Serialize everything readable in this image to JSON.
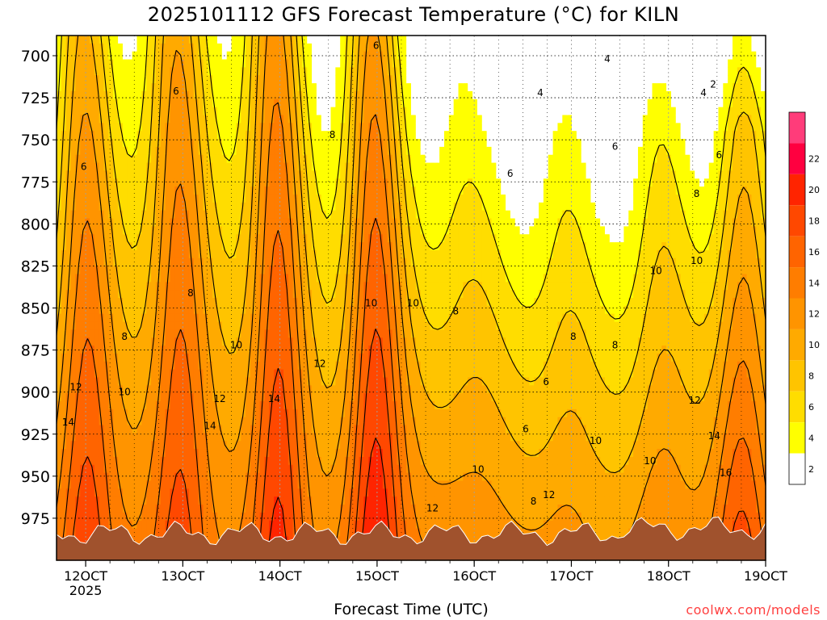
{
  "chart_data": {
    "type": "contour",
    "title": "2025101112 GFS Forecast Temperature (°C) for KILN",
    "xlabel": "Forecast Time (UTC)",
    "ylabel": "",
    "credit": "coolwx.com/models",
    "x_tick_labels": [
      "12OCT",
      "13OCT",
      "14OCT",
      "15OCT",
      "16OCT",
      "17OCT",
      "18OCT",
      "19OCT"
    ],
    "x_year_label": "2025",
    "y_tick_labels": [
      "700",
      "725",
      "750",
      "775",
      "800",
      "825",
      "850",
      "875",
      "900",
      "925",
      "950",
      "975"
    ],
    "y_levels_hPa": [
      700,
      725,
      750,
      775,
      800,
      825,
      850,
      875,
      900,
      925,
      950,
      975
    ],
    "x_day_range": [
      11.7,
      19.0
    ],
    "y_range_hPa": [
      688,
      1000
    ],
    "grid": true,
    "legend": "right",
    "colorbar_ticks": [
      "2",
      "4",
      "6",
      "8",
      "10",
      "12",
      "14",
      "16",
      "18",
      "20",
      "22"
    ],
    "colorbar_colors": [
      "#ffffff",
      "#ffff00",
      "#ffdd00",
      "#ffc400",
      "#ffaa00",
      "#ff9400",
      "#ff7d00",
      "#ff6400",
      "#ff4800",
      "#ff2400",
      "#ff0040",
      "#ff3c7a"
    ],
    "contour_labels": [
      {
        "t": "6",
        "day": 11.98,
        "p": 766
      },
      {
        "t": "6",
        "day": 12.93,
        "p": 721
      },
      {
        "t": "6",
        "day": 14.99,
        "p": 694
      },
      {
        "t": "8",
        "day": 14.54,
        "p": 747
      },
      {
        "t": "8",
        "day": 13.08,
        "p": 841
      },
      {
        "t": "8",
        "day": 12.4,
        "p": 867
      },
      {
        "t": "10",
        "day": 13.55,
        "p": 872
      },
      {
        "t": "10",
        "day": 14.94,
        "p": 847
      },
      {
        "t": "10",
        "day": 15.37,
        "p": 847
      },
      {
        "t": "8",
        "day": 15.81,
        "p": 852
      },
      {
        "t": "12",
        "day": 11.9,
        "p": 897
      },
      {
        "t": "10",
        "day": 12.4,
        "p": 900
      },
      {
        "t": "12",
        "day": 13.38,
        "p": 904
      },
      {
        "t": "12",
        "day": 14.41,
        "p": 883
      },
      {
        "t": "14",
        "day": 11.82,
        "p": 918
      },
      {
        "t": "14",
        "day": 13.28,
        "p": 920
      },
      {
        "t": "14",
        "day": 13.94,
        "p": 904
      },
      {
        "t": "4",
        "day": 17.37,
        "p": 702
      },
      {
        "t": "4",
        "day": 16.68,
        "p": 722
      },
      {
        "t": "2",
        "day": 18.46,
        "p": 717
      },
      {
        "t": "4",
        "day": 18.36,
        "p": 722
      },
      {
        "t": "6",
        "day": 16.37,
        "p": 770
      },
      {
        "t": "6",
        "day": 17.45,
        "p": 754
      },
      {
        "t": "6",
        "day": 18.52,
        "p": 759
      },
      {
        "t": "8",
        "day": 18.29,
        "p": 782
      },
      {
        "t": "10",
        "day": 17.87,
        "p": 828
      },
      {
        "t": "10",
        "day": 18.29,
        "p": 822
      },
      {
        "t": "8",
        "day": 17.02,
        "p": 867
      },
      {
        "t": "8",
        "day": 17.45,
        "p": 872
      },
      {
        "t": "6",
        "day": 16.74,
        "p": 894
      },
      {
        "t": "6",
        "day": 16.53,
        "p": 922
      },
      {
        "t": "10",
        "day": 17.25,
        "p": 929
      },
      {
        "t": "10",
        "day": 17.81,
        "p": 941
      },
      {
        "t": "12",
        "day": 18.27,
        "p": 905
      },
      {
        "t": "14",
        "day": 18.47,
        "p": 926
      },
      {
        "t": "10",
        "day": 16.04,
        "p": 946
      },
      {
        "t": "12",
        "day": 15.57,
        "p": 969
      },
      {
        "t": "8",
        "day": 16.61,
        "p": 965
      },
      {
        "t": "12",
        "day": 16.77,
        "p": 961
      },
      {
        "t": "16",
        "day": 18.59,
        "p": 948
      }
    ]
  }
}
